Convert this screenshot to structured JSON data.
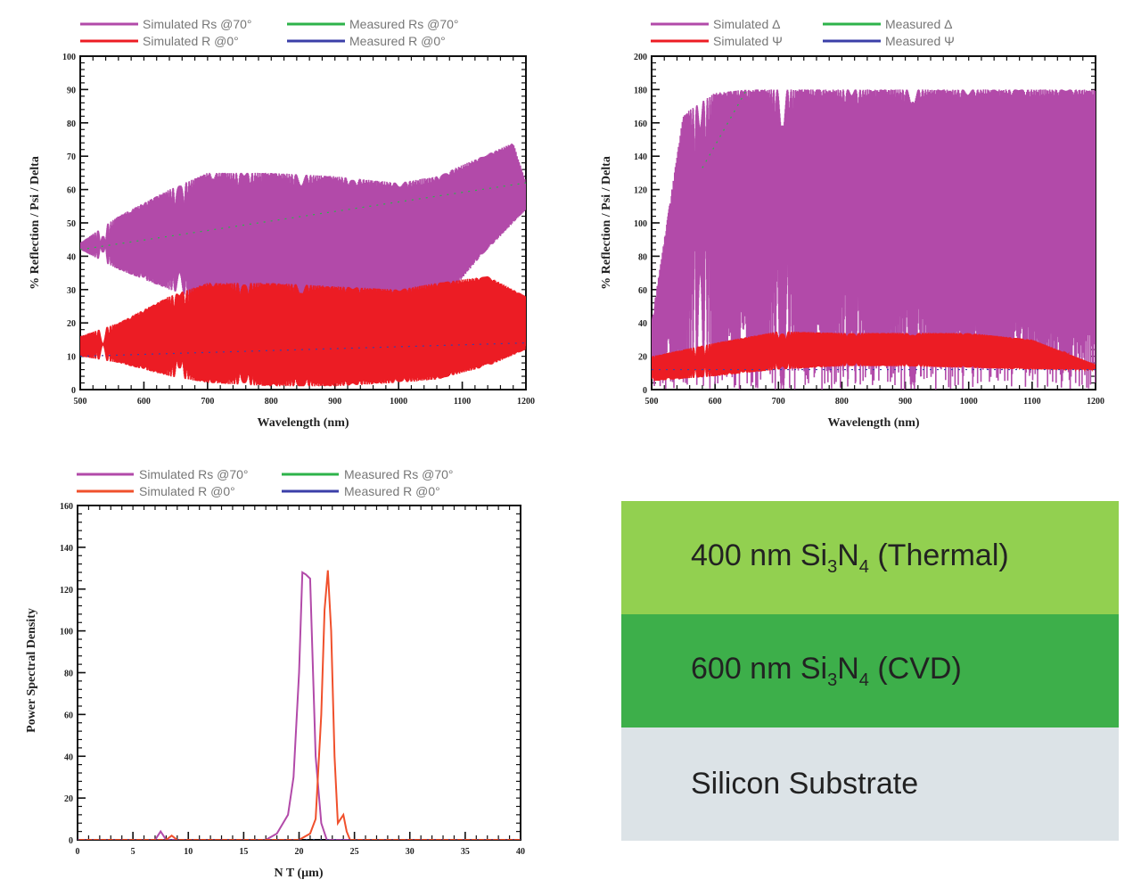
{
  "chart_data": [
    {
      "type": "line",
      "xlabel": "Wavelength (nm)",
      "ylabel": "% Reflection / Psi / Delta",
      "xlim": [
        500,
        1200
      ],
      "ylim": [
        0,
        100
      ],
      "xticks": [
        500,
        600,
        700,
        800,
        900,
        1000,
        1100,
        1200
      ],
      "yticks": [
        0,
        10,
        20,
        30,
        40,
        50,
        60,
        70,
        80,
        90,
        100
      ],
      "legend": [
        "Simulated Rs @70°",
        "Measured Rs @70°",
        "Simulated R @0°",
        "Measured R @0°"
      ],
      "series": [
        {
          "name": "Simulated Rs @70°",
          "color": "#b24aa9",
          "x": [
            500,
            560,
            640,
            700,
            800,
            900,
            1000,
            1060,
            1120,
            1180,
            1200
          ],
          "envelope_low": [
            42,
            36,
            30,
            26,
            24,
            23,
            22,
            24,
            38,
            50,
            54
          ],
          "envelope_high": [
            44,
            52,
            60,
            65,
            65,
            64,
            62,
            64,
            69,
            74,
            62
          ]
        },
        {
          "name": "Measured Rs @70°",
          "color": "#2db34a",
          "x": [
            500,
            1200
          ],
          "values": [
            42,
            62
          ]
        },
        {
          "name": "Simulated R @0°",
          "color": "#ec1c24",
          "x": [
            500,
            560,
            640,
            700,
            800,
            900,
            1000,
            1060,
            1140,
            1200
          ],
          "envelope_low": [
            10,
            8,
            4,
            2,
            1,
            1,
            2,
            3,
            7,
            12
          ],
          "envelope_high": [
            16,
            20,
            28,
            32,
            32,
            31,
            30,
            32,
            34,
            28
          ]
        },
        {
          "name": "Measured R @0°",
          "color": "#3b3fa8",
          "x": [
            500,
            1200
          ],
          "values": [
            10,
            14
          ]
        }
      ]
    },
    {
      "type": "line",
      "xlabel": "Wavelength (nm)",
      "ylabel": "% Reflection / Psi / Delta",
      "xlim": [
        500,
        1200
      ],
      "ylim": [
        0,
        200
      ],
      "xticks": [
        500,
        600,
        700,
        800,
        900,
        1000,
        1100,
        1200
      ],
      "yticks": [
        0,
        20,
        40,
        60,
        80,
        100,
        120,
        140,
        160,
        180,
        200
      ],
      "legend": [
        "Simulated Δ",
        "Measured Δ",
        "Simulated Ψ",
        "Measured Ψ"
      ],
      "series": [
        {
          "name": "Simulated Δ",
          "color": "#b24aa9",
          "x": [
            500,
            550,
            600,
            650,
            700,
            800,
            900,
            1000,
            1100,
            1180
          ],
          "envelope_low": [
            0,
            0,
            0,
            0,
            0,
            0,
            0,
            0,
            0,
            0
          ],
          "envelope_high": [
            40,
            165,
            178,
            180,
            180,
            180,
            180,
            180,
            180,
            180
          ]
        },
        {
          "name": "Measured Δ",
          "color": "#2db34a",
          "x": [
            580,
            650
          ],
          "values": [
            133,
            180
          ]
        },
        {
          "name": "Simulated Ψ",
          "color": "#ec1c24",
          "x": [
            500,
            600,
            700,
            800,
            900,
            1000,
            1100,
            1200
          ],
          "envelope_low": [
            5,
            8,
            12,
            14,
            14,
            13,
            12,
            12
          ],
          "envelope_high": [
            20,
            28,
            35,
            34,
            34,
            34,
            30,
            15
          ]
        },
        {
          "name": "Measured Ψ",
          "color": "#3b3fa8",
          "x": [
            500,
            1200
          ],
          "values": [
            12,
            12
          ]
        }
      ]
    },
    {
      "type": "line",
      "xlabel": "N T (µm)",
      "ylabel": "Power Spectral Density",
      "xlim": [
        0,
        40
      ],
      "ylim": [
        0,
        160
      ],
      "xticks": [
        0,
        5,
        10,
        15,
        20,
        25,
        30,
        35,
        40
      ],
      "yticks": [
        0,
        20,
        40,
        60,
        80,
        100,
        120,
        140,
        160
      ],
      "legend": [
        "Simulated Rs @70°",
        "Measured Rs @70°",
        "Simulated R @0°",
        "Measured R @0°"
      ],
      "series": [
        {
          "name": "Simulated Rs @70°",
          "color": "#b24aa9",
          "peak_x": 20.5,
          "peak_y": 128,
          "x": [
            0,
            7,
            7.5,
            8,
            17,
            18,
            19,
            19.5,
            20,
            20.3,
            20.6,
            21,
            21.5,
            22,
            22.5,
            40
          ],
          "values": [
            0,
            0,
            4,
            0,
            0,
            3,
            12,
            30,
            80,
            128,
            127,
            125,
            40,
            8,
            0,
            0
          ]
        },
        {
          "name": "Measured Rs @70°",
          "color": "#2db34a",
          "x": [
            0,
            40
          ],
          "values": [
            0,
            0
          ]
        },
        {
          "name": "Simulated R @0°",
          "color": "#f0502c",
          "peak_x": 22.6,
          "peak_y": 129,
          "x": [
            0,
            8,
            8.5,
            9,
            20,
            21,
            21.5,
            22,
            22.3,
            22.6,
            22.9,
            23.2,
            23.5,
            24,
            24.3,
            24.6,
            25,
            40
          ],
          "values": [
            0,
            0,
            2,
            0,
            0,
            3,
            10,
            60,
            110,
            129,
            100,
            40,
            8,
            12,
            4,
            0,
            0,
            0
          ]
        },
        {
          "name": "Measured R @0°",
          "color": "#3b3fa8",
          "x": [
            0,
            40
          ],
          "values": [
            0,
            0
          ]
        }
      ]
    }
  ],
  "layers": [
    {
      "text": "400 nm Si",
      "sub1": "3",
      "mid": "N",
      "sub2": "4",
      "suffix": " (Thermal)",
      "color": "#92d050"
    },
    {
      "text": "600 nm Si",
      "sub1": "3",
      "mid": "N",
      "sub2": "4",
      "suffix": " (CVD)",
      "color": "#3daf4a"
    },
    {
      "text": "Silicon Substrate",
      "color": "#dce3e7"
    }
  ]
}
